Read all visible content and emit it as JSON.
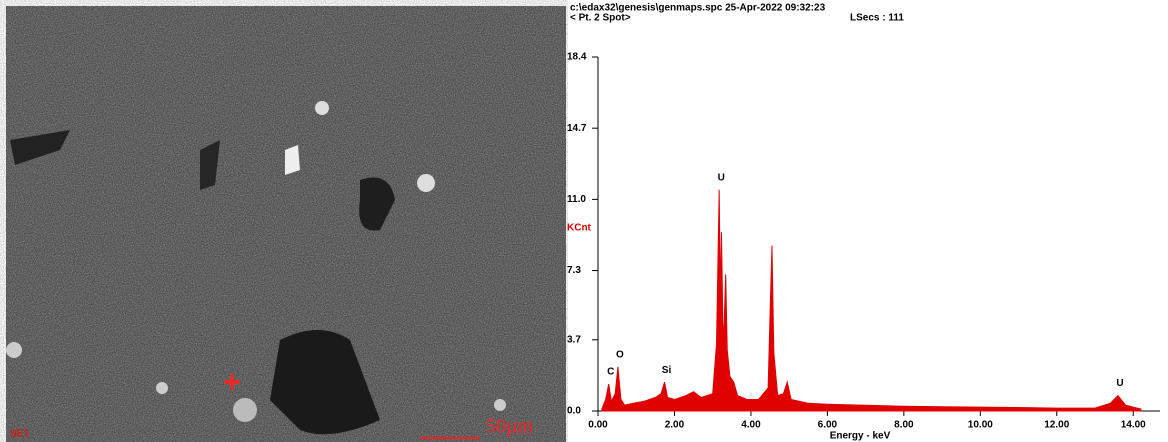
{
  "image_panel": {
    "labels": [
      "SE1",
      "50µm"
    ]
  },
  "chart_data": {
    "type": "area",
    "header": [
      "c:\\edax32\\genesis\\genmaps.spc  25-Apr-2022 09:32:23",
      "< Pt. 2 Spot>",
      "LSecs : 111"
    ],
    "x_label": "Energy - keV",
    "y_label": "KCnt",
    "x": [
      0.1,
      0.2,
      0.28,
      0.35,
      0.45,
      0.52,
      0.6,
      0.7,
      0.9,
      1.2,
      1.5,
      1.65,
      1.74,
      1.82,
      2.0,
      2.3,
      2.5,
      2.7,
      3.0,
      3.1,
      3.17,
      3.2,
      3.23,
      3.27,
      3.3,
      3.34,
      3.38,
      3.45,
      3.55,
      3.65,
      3.9,
      4.2,
      4.45,
      4.5,
      4.55,
      4.6,
      4.7,
      4.85,
      4.95,
      5.05,
      5.5,
      6.0,
      7,
      8,
      9,
      10,
      11,
      12,
      13,
      13.4,
      13.6,
      13.8,
      14.2
    ],
    "series": [
      {
        "color": "#e00000",
        "values": [
          0.1,
          0.6,
          1.4,
          0.5,
          0.9,
          2.3,
          0.6,
          0.3,
          0.4,
          0.5,
          0.7,
          0.9,
          1.5,
          0.7,
          0.6,
          0.8,
          1.0,
          0.7,
          0.9,
          3.5,
          11.5,
          6.0,
          9.3,
          4.0,
          4.5,
          7.1,
          3.2,
          1.8,
          1.5,
          0.8,
          0.6,
          0.6,
          1.2,
          5.0,
          8.6,
          3.0,
          0.8,
          0.9,
          1.5,
          0.6,
          0.4,
          0.35,
          0.3,
          0.25,
          0.22,
          0.2,
          0.18,
          0.15,
          0.15,
          0.4,
          0.8,
          0.3,
          0.1
        ]
      }
    ],
    "annotations": [
      {
        "text": "C",
        "x": 0.28
      },
      {
        "text": "O",
        "x": 0.52
      },
      {
        "text": "Si",
        "x": 1.74
      },
      {
        "text": "U",
        "x": 3.17
      },
      {
        "text": "U",
        "x": 13.6
      }
    ],
    "xlim": [
      0,
      14.7
    ],
    "ylim": [
      0,
      18.4
    ],
    "xticks": [
      {
        "value": 0,
        "label": "0.00"
      },
      {
        "value": 2,
        "label": "2.00"
      },
      {
        "value": 4,
        "label": "4.00"
      },
      {
        "value": 6,
        "label": "6.00"
      },
      {
        "value": 8,
        "label": "8.00"
      },
      {
        "value": 10,
        "label": "10.00"
      },
      {
        "value": 12,
        "label": "12.00"
      },
      {
        "value": 14,
        "label": "14.00"
      }
    ],
    "yticks": [
      {
        "value": 0,
        "label": "0.0"
      },
      3.7,
      7.3,
      {
        "value": 11,
        "label": "11.0"
      },
      14.7,
      18.4
    ]
  }
}
